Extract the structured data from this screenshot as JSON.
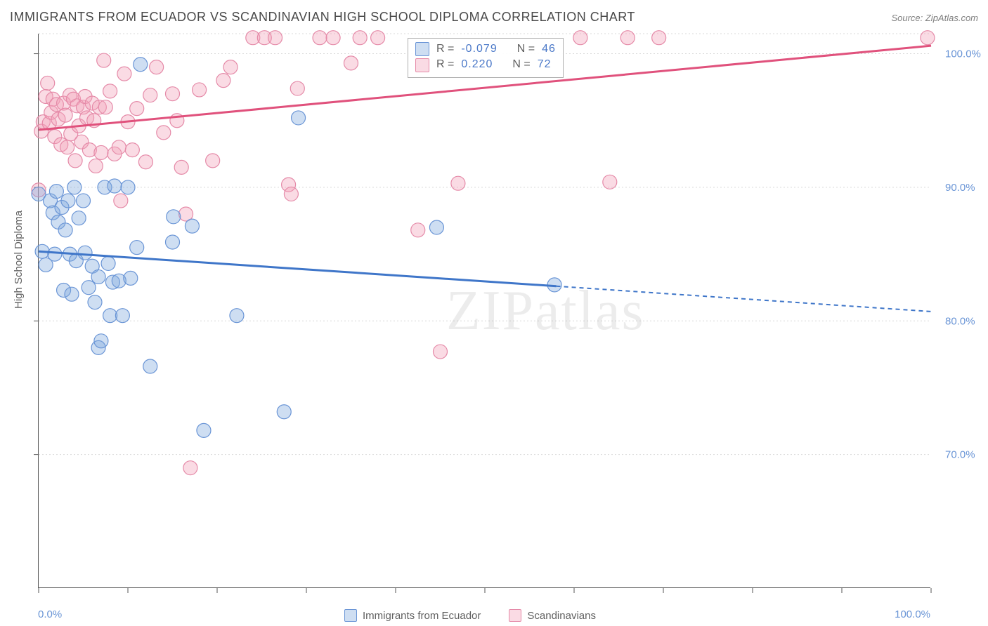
{
  "title": "IMMIGRANTS FROM ECUADOR VS SCANDINAVIAN HIGH SCHOOL DIPLOMA CORRELATION CHART",
  "source": "Source: ZipAtlas.com",
  "ylabel": "High School Diploma",
  "watermark": "ZIPatlas",
  "xaxis": {
    "min_label": "0.0%",
    "max_label": "100.0%",
    "xmin": 0,
    "xmax": 100
  },
  "yaxis": {
    "ymin": 60,
    "ymax": 101.5,
    "ticks": [
      70,
      80,
      90,
      100
    ],
    "tick_labels": [
      "70.0%",
      "80.0%",
      "90.0%",
      "100.0%"
    ]
  },
  "gridlines_y": [
    70,
    80,
    90,
    100,
    101.5
  ],
  "colors": {
    "series_a_fill": "rgba(127,168,221,0.38)",
    "series_a_stroke": "#6a95d6",
    "series_a_line": "#3f76c9",
    "series_b_fill": "rgba(242,160,185,0.38)",
    "series_b_stroke": "#e58aa8",
    "series_b_line": "#e0517c",
    "axis_text": "#6a95d6",
    "grid": "#d8d8d8",
    "background": "#ffffff"
  },
  "marker_radius": 10,
  "stats": {
    "a": {
      "r_label": "R =",
      "r_value": "-0.079",
      "n_label": "N =",
      "n_value": "46"
    },
    "b": {
      "r_label": "R =",
      "r_value": " 0.220",
      "n_label": "N =",
      "n_value": "72"
    }
  },
  "legend": {
    "a": "Immigrants from Ecuador",
    "b": "Scandinavians"
  },
  "series_a": {
    "trend": {
      "x0": 0,
      "y0": 85.2,
      "x1_solid": 58,
      "y1_solid": 82.6,
      "x1_dash": 100,
      "y1_dash": 80.7
    },
    "points": [
      [
        0,
        89.5
      ],
      [
        0.4,
        85.2
      ],
      [
        0.8,
        84.2
      ],
      [
        1.3,
        89.0
      ],
      [
        1.6,
        88.1
      ],
      [
        1.8,
        85.0
      ],
      [
        2.0,
        89.7
      ],
      [
        2.2,
        87.4
      ],
      [
        2.6,
        88.5
      ],
      [
        2.8,
        82.3
      ],
      [
        3.0,
        86.8
      ],
      [
        3.3,
        89.0
      ],
      [
        3.5,
        85.0
      ],
      [
        3.7,
        82.0
      ],
      [
        4.0,
        90.0
      ],
      [
        4.2,
        84.5
      ],
      [
        4.5,
        87.7
      ],
      [
        5.0,
        89.0
      ],
      [
        5.2,
        85.1
      ],
      [
        5.6,
        82.5
      ],
      [
        6.0,
        84.1
      ],
      [
        6.3,
        81.4
      ],
      [
        6.7,
        83.3
      ],
      [
        6.7,
        78.0
      ],
      [
        7.0,
        78.5
      ],
      [
        7.4,
        90.0
      ],
      [
        7.8,
        84.3
      ],
      [
        8.0,
        80.4
      ],
      [
        8.3,
        82.9
      ],
      [
        8.5,
        90.1
      ],
      [
        9.0,
        83.0
      ],
      [
        9.4,
        80.4
      ],
      [
        10.0,
        90.0
      ],
      [
        10.3,
        83.2
      ],
      [
        11.0,
        85.5
      ],
      [
        11.4,
        99.2
      ],
      [
        12.5,
        76.6
      ],
      [
        15.0,
        85.9
      ],
      [
        15.1,
        87.8
      ],
      [
        17.2,
        87.1
      ],
      [
        18.5,
        71.8
      ],
      [
        22.2,
        80.4
      ],
      [
        27.5,
        73.2
      ],
      [
        29.1,
        95.2
      ],
      [
        44.6,
        87.0
      ],
      [
        57.8,
        82.7
      ]
    ]
  },
  "series_b": {
    "trend": {
      "x0": 0,
      "y0": 94.3,
      "x1_solid": 100,
      "y1_solid": 100.6
    },
    "points": [
      [
        0,
        89.8
      ],
      [
        0.3,
        94.2
      ],
      [
        0.5,
        94.9
      ],
      [
        0.8,
        96.8
      ],
      [
        1.0,
        97.8
      ],
      [
        1.2,
        94.8
      ],
      [
        1.4,
        95.6
      ],
      [
        1.6,
        96.6
      ],
      [
        1.8,
        93.8
      ],
      [
        2.0,
        96.2
      ],
      [
        2.2,
        95.1
      ],
      [
        2.5,
        93.2
      ],
      [
        2.8,
        96.3
      ],
      [
        3.0,
        95.4
      ],
      [
        3.2,
        93.0
      ],
      [
        3.5,
        96.9
      ],
      [
        3.6,
        94.0
      ],
      [
        3.9,
        96.6
      ],
      [
        4.1,
        92.0
      ],
      [
        4.3,
        96.1
      ],
      [
        4.5,
        94.6
      ],
      [
        4.8,
        93.4
      ],
      [
        5.0,
        96.0
      ],
      [
        5.2,
        96.8
      ],
      [
        5.4,
        95.2
      ],
      [
        5.7,
        92.8
      ],
      [
        6.0,
        96.3
      ],
      [
        6.2,
        95.0
      ],
      [
        6.4,
        91.6
      ],
      [
        6.8,
        96.0
      ],
      [
        7.0,
        92.6
      ],
      [
        7.3,
        99.5
      ],
      [
        7.5,
        96.0
      ],
      [
        8.0,
        97.2
      ],
      [
        8.5,
        92.5
      ],
      [
        9.0,
        93.0
      ],
      [
        9.2,
        89.0
      ],
      [
        9.6,
        98.5
      ],
      [
        10.0,
        94.9
      ],
      [
        10.5,
        92.8
      ],
      [
        11.0,
        95.9
      ],
      [
        12.0,
        91.9
      ],
      [
        12.5,
        96.9
      ],
      [
        13.2,
        99.0
      ],
      [
        14.0,
        94.1
      ],
      [
        15.0,
        97.0
      ],
      [
        15.5,
        95.0
      ],
      [
        16.0,
        91.5
      ],
      [
        16.5,
        88.0
      ],
      [
        17.0,
        69.0
      ],
      [
        18.0,
        97.3
      ],
      [
        19.5,
        92.0
      ],
      [
        20.7,
        98.0
      ],
      [
        21.5,
        99.0
      ],
      [
        24.0,
        101.2
      ],
      [
        25.3,
        101.2
      ],
      [
        26.5,
        101.2
      ],
      [
        28.0,
        90.2
      ],
      [
        28.3,
        89.5
      ],
      [
        29.0,
        97.4
      ],
      [
        31.5,
        101.2
      ],
      [
        33.0,
        101.2
      ],
      [
        35.0,
        99.3
      ],
      [
        36.0,
        101.2
      ],
      [
        38.0,
        101.2
      ],
      [
        42.5,
        86.8
      ],
      [
        45.0,
        77.7
      ],
      [
        47.0,
        90.3
      ],
      [
        60.7,
        101.2
      ],
      [
        64.0,
        90.4
      ],
      [
        66.0,
        101.2
      ],
      [
        69.5,
        101.2
      ],
      [
        99.6,
        101.2
      ]
    ]
  }
}
